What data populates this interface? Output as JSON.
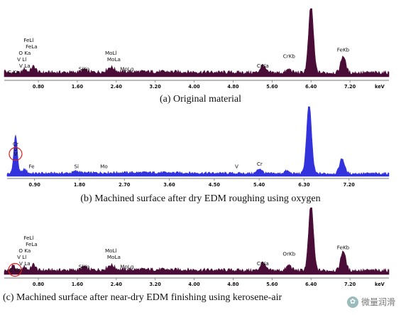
{
  "figure": {
    "captions": {
      "a": "(a) Original material",
      "b": "(b) Machined surface after dry EDM roughing using oxygen",
      "c": "(c) Machined surface after near-dry EDM finishing using kerosene-air"
    },
    "watermark": "微量润滑",
    "colors": {
      "panel_a": "#4a0d37",
      "panel_b": "#3333dd",
      "panel_c": "#4a0d37",
      "circle": "#d81e1e"
    }
  },
  "chart_data": [
    {
      "id": "a",
      "type": "area",
      "x_unit": "keV",
      "x_ticks": [
        0.8,
        1.6,
        2.4,
        3.2,
        4.0,
        4.8,
        5.6,
        6.4,
        7.2
      ],
      "x_tick_labels": [
        "0.80",
        "1.60",
        "2.40",
        "3.20",
        "4.00",
        "4.80",
        "5.60",
        "6.40",
        "7.20"
      ],
      "xlim": [
        0.1,
        8.0
      ],
      "ylim": [
        0,
        1.0
      ],
      "base_level": 0.06,
      "peaks": [
        {
          "x": 0.08,
          "h": 0.05,
          "w": 0.05
        },
        {
          "x": 0.52,
          "h": 0.06,
          "w": 0.05
        },
        {
          "x": 0.7,
          "h": 0.09,
          "w": 0.07
        },
        {
          "x": 1.74,
          "h": 0.04,
          "w": 0.07
        },
        {
          "x": 2.29,
          "h": 0.07,
          "w": 0.1
        },
        {
          "x": 5.41,
          "h": 0.11,
          "w": 0.07
        },
        {
          "x": 5.95,
          "h": 0.05,
          "w": 0.07
        },
        {
          "x": 6.4,
          "h": 1.0,
          "w": 0.07
        },
        {
          "x": 7.06,
          "h": 0.25,
          "w": 0.07
        }
      ],
      "labels": [
        {
          "text": "FeLl",
          "x": 0.6,
          "level": 5
        },
        {
          "text": "FeLa",
          "x": 0.66,
          "level": 4
        },
        {
          "text": "O Ka",
          "x": 0.52,
          "level": 3
        },
        {
          "text": "V Ll",
          "x": 0.46,
          "level": 2
        },
        {
          "text": "V La",
          "x": 0.52,
          "level": 1
        },
        {
          "text": "C Ka",
          "x": 0.29,
          "level": 0
        },
        {
          "text": "MoLl",
          "x": 2.29,
          "level": 3
        },
        {
          "text": "MoLa",
          "x": 2.35,
          "level": 2
        },
        {
          "text": "SiKa",
          "x": 1.74,
          "level": 0.5
        },
        {
          "text": "MoLg",
          "x": 2.62,
          "level": 0.5
        },
        {
          "text": "CrKa",
          "x": 5.41,
          "level": 1
        },
        {
          "text": "CrKb",
          "x": 5.95,
          "level": 2.5
        },
        {
          "text": "FeKb",
          "x": 7.06,
          "level": 3.5
        }
      ]
    },
    {
      "id": "b",
      "type": "area",
      "x_unit": "",
      "x_ticks": [
        0.9,
        1.8,
        2.7,
        3.6,
        4.5,
        5.4,
        6.3,
        7.2
      ],
      "x_tick_labels": [
        "0.90",
        "1.80",
        "2.70",
        "3.60",
        "4.50",
        "5.40",
        "6.30",
        "7.20"
      ],
      "xlim": [
        0.35,
        8.0
      ],
      "ylim": [
        0,
        1.0
      ],
      "base_level": 0.04,
      "peaks": [
        {
          "x": 0.52,
          "h": 0.55,
          "w": 0.05
        },
        {
          "x": 0.7,
          "h": 0.06,
          "w": 0.06
        },
        {
          "x": 1.74,
          "h": 0.03,
          "w": 0.08
        },
        {
          "x": 5.41,
          "h": 0.07,
          "w": 0.07
        },
        {
          "x": 5.95,
          "h": 0.04,
          "w": 0.07
        },
        {
          "x": 6.4,
          "h": 1.0,
          "w": 0.07
        },
        {
          "x": 7.06,
          "h": 0.22,
          "w": 0.07
        }
      ],
      "labels": [
        {
          "text": "Cr",
          "x": 0.52,
          "level": 5
        },
        {
          "text": "O",
          "x": 0.52,
          "level": 4
        },
        {
          "text": "V",
          "x": 0.52,
          "level": 3
        },
        {
          "text": "C",
          "x": 0.05,
          "level": 0.5
        },
        {
          "text": "Fe",
          "x": 0.84,
          "level": 0.5
        },
        {
          "text": "Si",
          "x": 1.74,
          "level": 0.5
        },
        {
          "text": "Mo",
          "x": 2.29,
          "level": 0.5
        },
        {
          "text": "V",
          "x": 4.95,
          "level": 0.5
        },
        {
          "text": "Cr",
          "x": 5.41,
          "level": 1
        }
      ],
      "circles": [
        {
          "x": 0.52,
          "level": 3
        },
        {
          "x": 0.05,
          "level": 0.5
        }
      ]
    },
    {
      "id": "c",
      "type": "area",
      "x_unit": "keV",
      "x_ticks": [
        0.8,
        1.6,
        2.4,
        3.2,
        4.0,
        4.8,
        5.6,
        6.4,
        7.2
      ],
      "x_tick_labels": [
        "0.80",
        "1.60",
        "2.40",
        "3.20",
        "4.00",
        "4.80",
        "5.60",
        "6.40",
        "7.20"
      ],
      "xlim": [
        0.1,
        8.0
      ],
      "ylim": [
        0,
        1.0
      ],
      "base_level": 0.06,
      "peaks": [
        {
          "x": 0.28,
          "h": 0.08,
          "w": 0.05
        },
        {
          "x": 0.52,
          "h": 0.06,
          "w": 0.05
        },
        {
          "x": 0.7,
          "h": 0.09,
          "w": 0.06
        },
        {
          "x": 1.74,
          "h": 0.05,
          "w": 0.07
        },
        {
          "x": 2.29,
          "h": 0.07,
          "w": 0.1
        },
        {
          "x": 5.41,
          "h": 0.12,
          "w": 0.07
        },
        {
          "x": 5.95,
          "h": 0.08,
          "w": 0.07
        },
        {
          "x": 6.4,
          "h": 1.0,
          "w": 0.07
        },
        {
          "x": 7.06,
          "h": 0.3,
          "w": 0.07
        }
      ],
      "labels": [
        {
          "text": "FeLl",
          "x": 0.6,
          "level": 5
        },
        {
          "text": "FeLa",
          "x": 0.66,
          "level": 4
        },
        {
          "text": "O Ka",
          "x": 0.52,
          "level": 3
        },
        {
          "text": "V Ll",
          "x": 0.46,
          "level": 2
        },
        {
          "text": "V La",
          "x": 0.52,
          "level": 1
        },
        {
          "text": "C Ka",
          "x": 0.32,
          "level": 0
        },
        {
          "text": "MoLl",
          "x": 2.29,
          "level": 3
        },
        {
          "text": "MoLa",
          "x": 2.35,
          "level": 2
        },
        {
          "text": "SiKa",
          "x": 1.74,
          "level": 0.5
        },
        {
          "text": "MoLg",
          "x": 2.62,
          "level": 0.5
        },
        {
          "text": "CrKa",
          "x": 5.41,
          "level": 1
        },
        {
          "text": "OrKb",
          "x": 5.95,
          "level": 2.5
        },
        {
          "text": "FeKb",
          "x": 7.06,
          "level": 3.5
        }
      ],
      "circles": [
        {
          "x": 0.32,
          "level": 0
        }
      ]
    }
  ]
}
